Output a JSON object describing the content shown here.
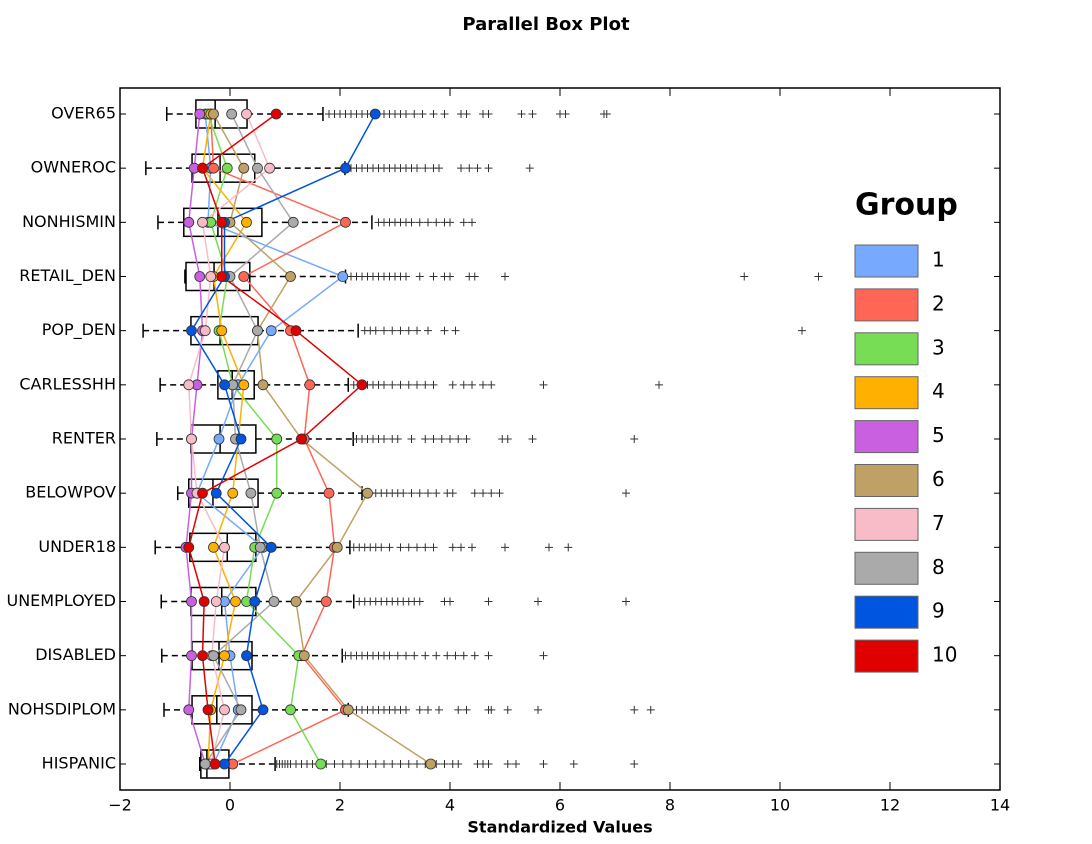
{
  "chart_data": {
    "type": "boxplot",
    "title": "Parallel Box Plot",
    "xlabel": "Standardized Values",
    "xlim": [
      -2,
      14
    ],
    "xticks": [
      {
        "value": -2,
        "label": "−2"
      },
      0,
      2,
      4,
      6,
      8,
      10,
      12,
      14
    ],
    "categories": [
      "OVER65",
      "OWNEROC",
      "NONHISMIN",
      "RETAIL_DEN",
      "POP_DEN",
      "CARLESSHH",
      "RENTER",
      "BELOWPOV",
      "UNDER18",
      "UNEMPLOYED",
      "DISABLED",
      "NOHSDIPLOM",
      "HISPANIC"
    ],
    "boxes": [
      {
        "whislo": -1.15,
        "q1": -0.62,
        "med": -0.27,
        "q3": 0.31,
        "whishi": 1.69,
        "fliers": [
          1.8,
          1.9,
          2.0,
          2.1,
          2.2,
          2.3,
          2.4,
          2.5,
          2.6,
          2.7,
          2.8,
          2.9,
          3.0,
          3.1,
          3.2,
          3.35,
          3.5,
          3.7,
          3.9,
          4.2,
          4.3,
          4.6,
          4.7,
          5.3,
          5.5,
          6.0,
          6.1,
          6.8,
          6.85
        ]
      },
      {
        "whislo": -1.53,
        "q1": -0.69,
        "med": -0.18,
        "q3": 0.45,
        "whishi": 2.09,
        "fliers": [
          2.2,
          2.3,
          2.4,
          2.5,
          2.6,
          2.7,
          2.8,
          2.9,
          3.0,
          3.1,
          3.2,
          3.3,
          3.4,
          3.55,
          3.7,
          3.8,
          4.2,
          4.35,
          4.5,
          4.7,
          5.45
        ]
      },
      {
        "whislo": -1.31,
        "q1": -0.84,
        "med": -0.22,
        "q3": 0.58,
        "whishi": 2.58,
        "fliers": [
          2.7,
          2.8,
          2.9,
          3.0,
          3.1,
          3.2,
          3.3,
          3.45,
          3.6,
          3.75,
          3.9,
          4.0,
          4.25,
          4.4
        ]
      },
      {
        "whislo": -0.82,
        "q1": -0.8,
        "med": -0.29,
        "q3": 0.36,
        "whishi": 2.1,
        "fliers": [
          2.2,
          2.3,
          2.4,
          2.5,
          2.6,
          2.7,
          2.8,
          2.9,
          3.0,
          3.1,
          3.2,
          3.45,
          3.7,
          3.9,
          4.0,
          4.35,
          4.45,
          5.0,
          9.35,
          10.7
        ]
      },
      {
        "whislo": -1.58,
        "q1": -0.71,
        "med": -0.18,
        "q3": 0.51,
        "whishi": 2.33,
        "fliers": [
          2.45,
          2.55,
          2.65,
          2.8,
          2.95,
          3.1,
          3.25,
          3.4,
          3.6,
          3.9,
          4.1,
          10.4
        ]
      },
      {
        "whislo": -1.27,
        "q1": -0.22,
        "med": 0.04,
        "q3": 0.44,
        "whishi": 2.15,
        "fliers": [
          2.25,
          2.4,
          2.5,
          2.6,
          2.7,
          2.8,
          2.95,
          3.1,
          3.25,
          3.4,
          3.55,
          3.7,
          4.05,
          4.25,
          4.4,
          4.6,
          4.75,
          5.7,
          7.8
        ]
      },
      {
        "whislo": -1.33,
        "q1": -0.71,
        "med": -0.18,
        "q3": 0.47,
        "whishi": 2.24,
        "fliers": [
          2.3,
          2.4,
          2.5,
          2.6,
          2.7,
          2.8,
          2.95,
          3.05,
          3.3,
          3.55,
          3.7,
          3.85,
          4.0,
          4.15,
          4.3,
          4.95,
          5.05,
          5.5,
          7.35
        ]
      },
      {
        "whislo": -0.95,
        "q1": -0.75,
        "med": -0.31,
        "q3": 0.51,
        "whishi": 2.4,
        "fliers": [
          2.55,
          2.65,
          2.75,
          2.85,
          2.95,
          3.05,
          3.15,
          3.3,
          3.45,
          3.6,
          3.75,
          3.95,
          4.05,
          4.45,
          4.6,
          4.75,
          4.9,
          7.2
        ]
      },
      {
        "whislo": -1.36,
        "q1": -0.73,
        "med": -0.05,
        "q3": 0.47,
        "whishi": 2.18,
        "fliers": [
          2.25,
          2.35,
          2.45,
          2.55,
          2.65,
          2.75,
          2.9,
          3.1,
          3.25,
          3.4,
          3.55,
          3.7,
          4.05,
          4.2,
          4.4,
          5.0,
          5.8,
          6.15
        ]
      },
      {
        "whislo": -1.25,
        "q1": -0.71,
        "med": -0.15,
        "q3": 0.47,
        "whishi": 2.25,
        "fliers": [
          2.35,
          2.45,
          2.55,
          2.65,
          2.75,
          2.85,
          2.95,
          3.05,
          3.15,
          3.25,
          3.35,
          3.45,
          3.9,
          4.0,
          4.7,
          5.6,
          7.2
        ]
      },
      {
        "whislo": -1.24,
        "q1": -0.69,
        "med": -0.2,
        "q3": 0.4,
        "whishi": 2.04,
        "fliers": [
          2.1,
          2.2,
          2.3,
          2.4,
          2.5,
          2.6,
          2.7,
          2.8,
          2.9,
          3.05,
          3.2,
          3.35,
          3.55,
          3.75,
          3.95,
          4.1,
          4.25,
          4.45,
          4.7,
          5.7
        ]
      },
      {
        "whislo": -1.2,
        "q1": -0.69,
        "med": -0.24,
        "q3": 0.4,
        "whishi": 2.15,
        "fliers": [
          2.2,
          2.3,
          2.4,
          2.5,
          2.6,
          2.7,
          2.8,
          2.9,
          3.0,
          3.1,
          3.2,
          3.45,
          3.6,
          3.8,
          4.15,
          4.3,
          4.7,
          4.75,
          5.05,
          5.6,
          7.35,
          7.65
        ]
      },
      {
        "whislo": -0.55,
        "q1": -0.53,
        "med": -0.42,
        "q3": -0.02,
        "whishi": 0.82,
        "fliers": [
          0.85,
          0.9,
          0.95,
          1.0,
          1.05,
          1.1,
          1.2,
          1.3,
          1.4,
          1.5,
          1.6,
          1.75,
          1.9,
          2.05,
          2.2,
          2.35,
          2.5,
          2.65,
          2.8,
          2.95,
          3.1,
          3.25,
          3.4,
          3.55,
          3.75,
          3.9,
          4.05,
          4.15,
          4.5,
          4.6,
          4.7,
          5.05,
          5.2,
          5.7,
          6.25,
          7.35
        ]
      }
    ],
    "legend_title": "Group",
    "series": [
      {
        "name": "1",
        "color": "#77aaff",
        "values": [
          -0.45,
          -0.35,
          -0.4,
          2.05,
          0.75,
          0.15,
          -0.2,
          -0.6,
          0.6,
          -0.1,
          0.0,
          0.15,
          -0.3
        ]
      },
      {
        "name": "2",
        "color": "#ff6655",
        "values": [
          -0.35,
          -0.3,
          2.1,
          0.25,
          1.1,
          1.45,
          1.35,
          1.8,
          1.9,
          1.75,
          1.3,
          2.1,
          0.05
        ]
      },
      {
        "name": "3",
        "color": "#77dd55",
        "values": [
          -0.4,
          -0.05,
          -0.35,
          -0.05,
          -0.2,
          0.05,
          0.85,
          0.85,
          0.45,
          0.3,
          1.25,
          1.1,
          1.65
        ]
      },
      {
        "name": "4",
        "color": "#ffb000",
        "values": [
          -0.35,
          -0.5,
          0.3,
          -0.3,
          -0.15,
          0.25,
          0.15,
          0.05,
          -0.3,
          0.1,
          -0.1,
          -0.35,
          -0.4
        ]
      },
      {
        "name": "5",
        "color": "#c860e0",
        "values": [
          -0.55,
          -0.65,
          -0.75,
          -0.55,
          -0.5,
          -0.6,
          -0.7,
          -0.7,
          -0.8,
          -0.7,
          -0.7,
          -0.75,
          -0.45
        ]
      },
      {
        "name": "6",
        "color": "#bfa065",
        "values": [
          -0.3,
          0.25,
          0.0,
          1.1,
          0.5,
          0.6,
          1.3,
          2.5,
          1.95,
          1.2,
          1.35,
          2.15,
          3.65
        ]
      },
      {
        "name": "7",
        "color": "#f8bcc8",
        "values": [
          0.3,
          0.72,
          -0.5,
          -0.35,
          -0.45,
          -0.75,
          -0.7,
          -0.6,
          -0.1,
          -0.25,
          -0.33,
          -0.1,
          -0.35
        ]
      },
      {
        "name": "8",
        "color": "#aaaaaa",
        "values": [
          0.03,
          0.5,
          1.15,
          0.0,
          0.5,
          0.05,
          0.1,
          0.38,
          0.55,
          0.8,
          -0.3,
          0.2,
          -0.45
        ]
      },
      {
        "name": "9",
        "color": "#0055e0",
        "values": [
          2.64,
          2.1,
          -0.1,
          -0.1,
          -0.7,
          -0.1,
          0.2,
          -0.25,
          0.75,
          0.45,
          0.3,
          0.6,
          -0.1
        ]
      },
      {
        "name": "10",
        "color": "#e00000",
        "values": [
          0.84,
          -0.5,
          -0.15,
          -0.15,
          1.2,
          2.4,
          1.3,
          -0.5,
          -0.75,
          -0.47,
          -0.5,
          -0.4,
          -0.27
        ]
      }
    ]
  }
}
